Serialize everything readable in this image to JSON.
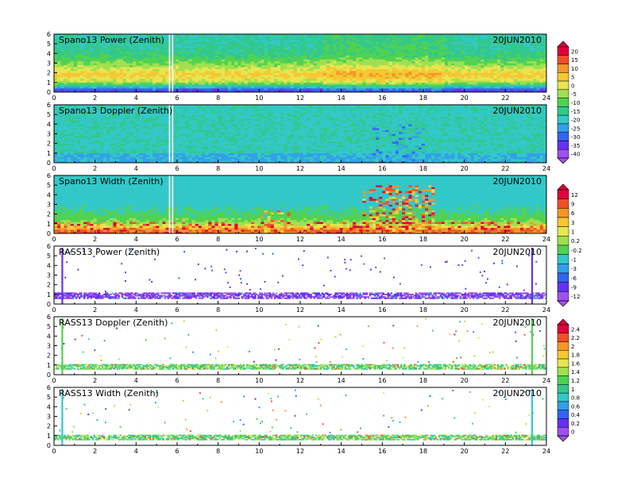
{
  "chart_data": [
    {
      "type": "heatmap",
      "title": "Spano13 Power (Zenith)",
      "date": "20JUN2010",
      "xlim": [
        0,
        24
      ],
      "ylim": [
        0,
        6
      ],
      "x_ticks": [
        "0",
        "2",
        "4",
        "6",
        "8",
        "10",
        "12",
        "14",
        "16",
        "18",
        "20",
        "22",
        "24"
      ],
      "y_ticks": [
        "0",
        "1",
        "2",
        "3",
        "4",
        "5",
        "6"
      ],
      "colorbar": {
        "labels": [
          "20",
          "15",
          "10",
          "5",
          "0",
          "-5",
          "-10",
          "-15",
          "-20",
          "-25",
          "-30",
          "-35",
          "-40"
        ],
        "colors": [
          "#e0003c",
          "#f05028",
          "#f59628",
          "#f5c832",
          "#e6e650",
          "#a0e050",
          "#50d250",
          "#32c88c",
          "#32c8c8",
          "#32a0e6",
          "#3264f0",
          "#6432f0",
          "#a050f0"
        ]
      },
      "profile": [
        {
          "height": 0.2,
          "value": -32
        },
        {
          "height": 1.0,
          "value": -5
        },
        {
          "height": 1.8,
          "value": 4
        },
        {
          "height": 2.8,
          "value": -6
        },
        {
          "height": 3.8,
          "value": -14
        },
        {
          "height": 5.0,
          "value": -16
        },
        {
          "height": 6.0,
          "value": -17
        }
      ]
    },
    {
      "type": "heatmap",
      "title": "Spano13 Doppler (Zenith)",
      "date": "20JUN2010",
      "xlim": [
        0,
        24
      ],
      "ylim": [
        0,
        6
      ],
      "x_ticks": [
        "0",
        "2",
        "4",
        "6",
        "8",
        "10",
        "12",
        "14",
        "16",
        "18",
        "20",
        "22",
        "24"
      ],
      "y_ticks": [
        "0",
        "1",
        "2",
        "3",
        "4",
        "5",
        "6"
      ],
      "profile": [
        {
          "height": 0.2,
          "value": -8
        },
        {
          "height": 2.0,
          "value": -2
        },
        {
          "height": 4.0,
          "value": -1
        },
        {
          "height": 6.0,
          "value": 0
        }
      ]
    },
    {
      "type": "heatmap",
      "title": "Spano13 Width (Zenith)",
      "date": "20JUN2010",
      "xlim": [
        0,
        24
      ],
      "ylim": [
        0,
        6
      ],
      "x_ticks": [
        "0",
        "2",
        "4",
        "6",
        "8",
        "10",
        "12",
        "14",
        "16",
        "18",
        "20",
        "22",
        "24"
      ],
      "y_ticks": [
        "0",
        "1",
        "2",
        "3",
        "4",
        "5",
        "6"
      ],
      "colorbar": {
        "labels": [
          "12",
          "9",
          "6",
          "3",
          "1",
          "0.2",
          "-0.2",
          "-1",
          "-3",
          "-6",
          "-9",
          "-12"
        ],
        "colors": [
          "#e0003c",
          "#f05028",
          "#f59628",
          "#f5c832",
          "#e6e650",
          "#a0e050",
          "#50d250",
          "#32c8c8",
          "#32a0e6",
          "#3264f0",
          "#6432f0",
          "#a050f0"
        ]
      },
      "profile": [
        {
          "height": 0.3,
          "value": 8
        },
        {
          "height": 1.0,
          "value": 1
        },
        {
          "height": 1.6,
          "value": -1
        },
        {
          "height": 3.0,
          "value": -3
        },
        {
          "height": 6.0,
          "value": -3
        }
      ]
    },
    {
      "type": "heatmap",
      "title": "RASS13 Power (Zenith)",
      "date": "20JUN2010",
      "xlim": [
        0,
        24
      ],
      "ylim": [
        0,
        6
      ],
      "x_ticks": [
        "0",
        "2",
        "4",
        "6",
        "8",
        "10",
        "12",
        "14",
        "16",
        "18",
        "20",
        "22",
        "24"
      ],
      "y_ticks": [
        "0",
        "1",
        "2",
        "3",
        "4",
        "5",
        "6"
      ],
      "band": {
        "bottom": 0.55,
        "top": 1.2,
        "value": -10
      },
      "spikes": [
        0.4,
        23.3
      ]
    },
    {
      "type": "heatmap",
      "title": "RASS13 Doppler (Zenith)",
      "date": "20JUN2010",
      "xlim": [
        0,
        24
      ],
      "ylim": [
        0,
        6
      ],
      "x_ticks": [
        "0",
        "2",
        "4",
        "6",
        "8",
        "10",
        "12",
        "14",
        "16",
        "18",
        "20",
        "22",
        "24"
      ],
      "y_ticks": [
        "0",
        "1",
        "2",
        "3",
        "4",
        "5",
        "6"
      ],
      "colorbar": {
        "labels": [
          "2.4",
          "2.2",
          "2",
          "1.8",
          "1.6",
          "1.4",
          "1.2",
          "1",
          "0.8",
          "0.6",
          "0.4",
          "0.2",
          "0"
        ],
        "colors": [
          "#e0003c",
          "#f05028",
          "#f59628",
          "#f5c832",
          "#e6e650",
          "#a0e050",
          "#50d250",
          "#32c88c",
          "#32c8c8",
          "#32a0e6",
          "#3264f0",
          "#6432f0",
          "#a050f0"
        ]
      },
      "band": {
        "bottom": 0.55,
        "top": 1.1,
        "value": 1.2
      },
      "spikes": [
        0.4,
        23.3
      ]
    },
    {
      "type": "heatmap",
      "title": "RASS13 Width (Zenith)",
      "date": "20JUN2010",
      "xlim": [
        0,
        24
      ],
      "ylim": [
        0,
        6
      ],
      "x_ticks": [
        "0",
        "2",
        "4",
        "6",
        "8",
        "10",
        "12",
        "14",
        "16",
        "18",
        "20",
        "22",
        "24"
      ],
      "y_ticks": [
        "0",
        "1",
        "2",
        "3",
        "4",
        "5",
        "6"
      ],
      "band": {
        "bottom": 0.55,
        "top": 1.1,
        "value": 1.2
      },
      "spikes": [
        0.4,
        23.3
      ]
    }
  ]
}
